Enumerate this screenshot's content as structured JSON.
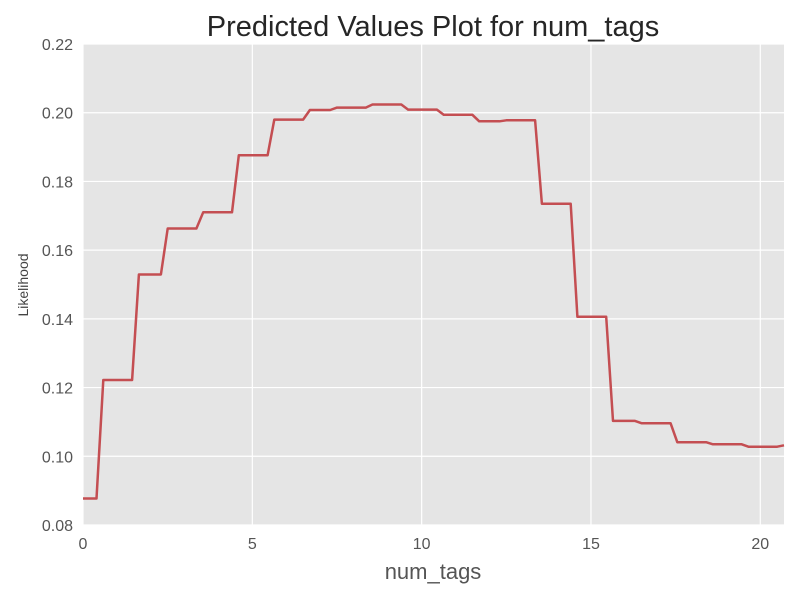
{
  "chart_data": {
    "type": "line",
    "title": "Predicted Values Plot for num_tags",
    "xlabel": "num_tags",
    "ylabel": "Likelihood",
    "xlim": [
      0,
      20.7
    ],
    "ylim": [
      0.08,
      0.22
    ],
    "xticks": [
      0,
      5,
      10,
      15,
      20
    ],
    "yticks": [
      0.08,
      0.1,
      0.12,
      0.14,
      0.16,
      0.18,
      0.2,
      0.22
    ],
    "xtick_labels": [
      "0",
      "5",
      "10",
      "15",
      "20"
    ],
    "ytick_labels": [
      "0.08",
      "0.10",
      "0.12",
      "0.14",
      "0.16",
      "0.18",
      "0.20",
      "0.22"
    ],
    "grid": true,
    "legend": "none",
    "colors": {
      "line": "#c44e52",
      "background": "#e5e5e5",
      "grid": "#ffffff"
    },
    "series": [
      {
        "x": [
          0,
          0.4,
          0.6,
          1.45,
          1.65,
          2.3,
          2.5,
          3.35,
          3.55,
          4.4,
          4.6,
          5.45,
          5.65,
          6.5,
          6.7,
          7.3,
          7.5,
          8.35,
          8.55,
          9.4,
          9.6,
          10.45,
          10.65,
          11.5,
          11.7,
          12.3,
          12.5,
          13.35,
          13.55,
          14.4,
          14.6,
          15.45,
          15.65,
          16.3,
          16.5,
          17.35,
          17.55,
          18.4,
          18.6,
          19.45,
          19.65,
          20.5,
          20.7
        ],
        "y": [
          0.0877,
          0.0877,
          0.1222,
          0.1222,
          0.1529,
          0.1529,
          0.1663,
          0.1663,
          0.171,
          0.171,
          0.1876,
          0.1876,
          0.198,
          0.198,
          0.2008,
          0.2008,
          0.2015,
          0.2015,
          0.2024,
          0.2024,
          0.2009,
          0.2009,
          0.1994,
          0.1994,
          0.1975,
          0.1975,
          0.1978,
          0.1978,
          0.1735,
          0.1735,
          0.1406,
          0.1406,
          0.1103,
          0.1103,
          0.1096,
          0.1096,
          0.1041,
          0.1041,
          0.1035,
          0.1035,
          0.1028,
          0.1028,
          0.1032
        ]
      }
    ]
  }
}
